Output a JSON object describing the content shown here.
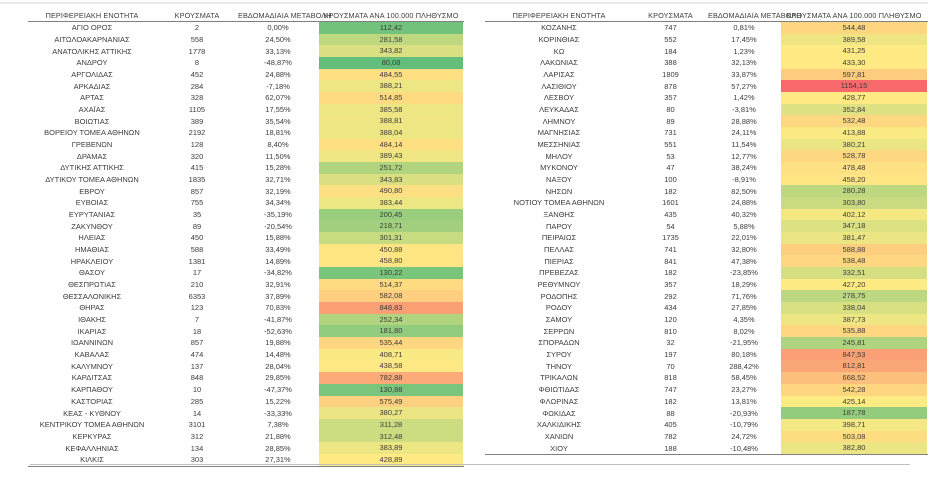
{
  "headers": {
    "region": "ΠΕΡΙΦΕΡΕΙΑΚΗ ΕΝΟΤΗΤΑ",
    "cases": "ΚΡΟΥΣΜΑΤΑ",
    "weekly_change": "ΕΒΔΟΜΑΔΙΑΙΑ ΜΕΤΑΒΟΛΗ",
    "per_100k": "ΚΡΟΥΣΜΑΤΑ ΑΝΑ 100.000 ΠΛΗΘΥΣΜΟ"
  },
  "color_scale": {
    "min_color": "#63BE7B",
    "mid_color": "#FFEB84",
    "max_color": "#F8696B",
    "min_value": 80.08,
    "mid_value": 425,
    "max_value": 1154.15
  },
  "tables": {
    "left": {
      "rows": [
        {
          "region": "ΑΓΙΟ ΟΡΟΣ",
          "cases": "2",
          "weekly_change": "0,00%",
          "per_100k": "112,42"
        },
        {
          "region": "ΑΙΤΩΛΟΑΚΑΡΝΑΝΙΑΣ",
          "cases": "558",
          "weekly_change": "24,50%",
          "per_100k": "281,58"
        },
        {
          "region": "ΑΝΑΤΟΛΙΚΗΣ ΑΤΤΙΚΗΣ",
          "cases": "1778",
          "weekly_change": "33,13%",
          "per_100k": "343,82"
        },
        {
          "region": "ΑΝΔΡΟΥ",
          "cases": "8",
          "weekly_change": "-48,87%",
          "per_100k": "80,08"
        },
        {
          "region": "ΑΡΓΟΛΙΔΑΣ",
          "cases": "452",
          "weekly_change": "24,88%",
          "per_100k": "484,55"
        },
        {
          "region": "ΑΡΚΑΔΙΑΣ",
          "cases": "284",
          "weekly_change": "-7,18%",
          "per_100k": "388,21"
        },
        {
          "region": "ΑΡΤΑΣ",
          "cases": "328",
          "weekly_change": "62,07%",
          "per_100k": "514,85"
        },
        {
          "region": "ΑΧΑΪΑΣ",
          "cases": "1105",
          "weekly_change": "17,55%",
          "per_100k": "385,58"
        },
        {
          "region": "ΒΟΙΩΤΙΑΣ",
          "cases": "389",
          "weekly_change": "35,54%",
          "per_100k": "388,81"
        },
        {
          "region": "ΒΟΡΕΙΟΥ ΤΟΜΕΑ ΑΘΗΝΩΝ",
          "cases": "2192",
          "weekly_change": "18,81%",
          "per_100k": "388,04"
        },
        {
          "region": "ΓΡΕΒΕΝΩΝ",
          "cases": "128",
          "weekly_change": "8,40%",
          "per_100k": "484,14"
        },
        {
          "region": "ΔΡΑΜΑΣ",
          "cases": "320",
          "weekly_change": "11,50%",
          "per_100k": "389,43"
        },
        {
          "region": "ΔΥΤΙΚΗΣ ΑΤΤΙΚΗΣ",
          "cases": "415",
          "weekly_change": "15,28%",
          "per_100k": "251,72"
        },
        {
          "region": "ΔΥΤΙΚΟΥ ΤΟΜΕΑ ΑΘΗΝΩΝ",
          "cases": "1835",
          "weekly_change": "32,71%",
          "per_100k": "343,83"
        },
        {
          "region": "ΕΒΡΟΥ",
          "cases": "857",
          "weekly_change": "32,19%",
          "per_100k": "490,80"
        },
        {
          "region": "ΕΥΒΟΙΑΣ",
          "cases": "755",
          "weekly_change": "34,34%",
          "per_100k": "383,44"
        },
        {
          "region": "ΕΥΡΥΤΑΝΙΑΣ",
          "cases": "35",
          "weekly_change": "-35,19%",
          "per_100k": "200,45"
        },
        {
          "region": "ΖΑΚΥΝΘΟΥ",
          "cases": "89",
          "weekly_change": "-20,54%",
          "per_100k": "218,71"
        },
        {
          "region": "ΗΛΕΙΑΣ",
          "cases": "450",
          "weekly_change": "15,88%",
          "per_100k": "301,31"
        },
        {
          "region": "ΗΜΑΘΙΑΣ",
          "cases": "588",
          "weekly_change": "33,49%",
          "per_100k": "450,88"
        },
        {
          "region": "ΗΡΑΚΛΕΙΟΥ",
          "cases": "1381",
          "weekly_change": "14,89%",
          "per_100k": "458,80"
        },
        {
          "region": "ΘΑΣΟΥ",
          "cases": "17",
          "weekly_change": "-34,82%",
          "per_100k": "130,22"
        },
        {
          "region": "ΘΕΣΠΡΩΤΙΑΣ",
          "cases": "210",
          "weekly_change": "32,91%",
          "per_100k": "514,37"
        },
        {
          "region": "ΘΕΣΣΑΛΟΝΙΚΗΣ",
          "cases": "6353",
          "weekly_change": "37,89%",
          "per_100k": "582,08"
        },
        {
          "region": "ΘΗΡΑΣ",
          "cases": "123",
          "weekly_change": "70,83%",
          "per_100k": "848,83"
        },
        {
          "region": "ΙΘΑΚΗΣ",
          "cases": "7",
          "weekly_change": "-41,87%",
          "per_100k": "252,34"
        },
        {
          "region": "ΙΚΑΡΙΑΣ",
          "cases": "18",
          "weekly_change": "-52,63%",
          "per_100k": "181,80"
        },
        {
          "region": "ΙΩΑΝΝΙΝΩΝ",
          "cases": "857",
          "weekly_change": "19,88%",
          "per_100k": "535,44"
        },
        {
          "region": "ΚΑΒΑΛΑΣ",
          "cases": "474",
          "weekly_change": "14,48%",
          "per_100k": "408,71"
        },
        {
          "region": "ΚΑΛΥΜΝΟΥ",
          "cases": "137",
          "weekly_change": "28,04%",
          "per_100k": "438,58"
        },
        {
          "region": "ΚΑΡΔΙΤΣΑΣ",
          "cases": "848",
          "weekly_change": "29,85%",
          "per_100k": "782,88"
        },
        {
          "region": "ΚΑΡΠΑΘΟΥ",
          "cases": "10",
          "weekly_change": "-47,37%",
          "per_100k": "130,88"
        },
        {
          "region": "ΚΑΣΤΟΡΙΑΣ",
          "cases": "285",
          "weekly_change": "15,22%",
          "per_100k": "575,49"
        },
        {
          "region": "ΚΕΑΣ - ΚΥΘΝΟΥ",
          "cases": "14",
          "weekly_change": "-33,33%",
          "per_100k": "380,27"
        },
        {
          "region": "ΚΕΝΤΡΙΚΟΥ ΤΟΜΕΑ ΑΘΗΝΩΝ",
          "cases": "3101",
          "weekly_change": "7,38%",
          "per_100k": "311,28"
        },
        {
          "region": "ΚΕΡΚΥΡΑΣ",
          "cases": "312",
          "weekly_change": "21,88%",
          "per_100k": "312,48"
        },
        {
          "region": "ΚΕΦΑΛΛΗΝΙΑΣ",
          "cases": "134",
          "weekly_change": "28,85%",
          "per_100k": "383,89"
        },
        {
          "region": "ΚΙΛΚΙΣ",
          "cases": "303",
          "weekly_change": "27,31%",
          "per_100k": "428,89"
        }
      ]
    },
    "right": {
      "rows": [
        {
          "region": "ΚΟΖΑΝΗΣ",
          "cases": "747",
          "weekly_change": "0,81%",
          "per_100k": "544,48"
        },
        {
          "region": "ΚΟΡΙΝΘΙΑΣ",
          "cases": "552",
          "weekly_change": "17,45%",
          "per_100k": "389,58"
        },
        {
          "region": "ΚΩ",
          "cases": "184",
          "weekly_change": "1,23%",
          "per_100k": "431,25"
        },
        {
          "region": "ΛΑΚΩΝΙΑΣ",
          "cases": "388",
          "weekly_change": "32,13%",
          "per_100k": "433,30"
        },
        {
          "region": "ΛΑΡΙΣΑΣ",
          "cases": "1809",
          "weekly_change": "33,87%",
          "per_100k": "597,81"
        },
        {
          "region": "ΛΑΣΙΘΙΟΥ",
          "cases": "878",
          "weekly_change": "57,27%",
          "per_100k": "1154,15"
        },
        {
          "region": "ΛΕΣΒΟΥ",
          "cases": "357",
          "weekly_change": "1,42%",
          "per_100k": "428,77"
        },
        {
          "region": "ΛΕΥΚΑΔΑΣ",
          "cases": "80",
          "weekly_change": "-3,81%",
          "per_100k": "352,84"
        },
        {
          "region": "ΛΗΜΝΟΥ",
          "cases": "89",
          "weekly_change": "28,88%",
          "per_100k": "532,48"
        },
        {
          "region": "ΜΑΓΝΗΣΙΑΣ",
          "cases": "731",
          "weekly_change": "24,11%",
          "per_100k": "413,88"
        },
        {
          "region": "ΜΕΣΣΗΝΙΑΣ",
          "cases": "551",
          "weekly_change": "11,54%",
          "per_100k": "380,21"
        },
        {
          "region": "ΜΗΛΟΥ",
          "cases": "53",
          "weekly_change": "12,77%",
          "per_100k": "528,78"
        },
        {
          "region": "ΜΥΚΟΝΟΥ",
          "cases": "47",
          "weekly_change": "38,24%",
          "per_100k": "478,48"
        },
        {
          "region": "ΝΑΞΟΥ",
          "cases": "100",
          "weekly_change": "-8,91%",
          "per_100k": "458,20"
        },
        {
          "region": "ΝΗΣΩΝ",
          "cases": "182",
          "weekly_change": "82,50%",
          "per_100k": "280,28"
        },
        {
          "region": "ΝΟΤΙΟΥ ΤΟΜΕΑ ΑΘΗΝΩΝ",
          "cases": "1601",
          "weekly_change": "24,88%",
          "per_100k": "303,80"
        },
        {
          "region": "ΞΑΝΘΗΣ",
          "cases": "435",
          "weekly_change": "40,32%",
          "per_100k": "402,12"
        },
        {
          "region": "ΠΑΡΟΥ",
          "cases": "54",
          "weekly_change": "5,88%",
          "per_100k": "347,18"
        },
        {
          "region": "ΠΕΙΡΑΙΩΣ",
          "cases": "1735",
          "weekly_change": "22,01%",
          "per_100k": "381,47"
        },
        {
          "region": "ΠΕΛΛΑΣ",
          "cases": "741",
          "weekly_change": "32,80%",
          "per_100k": "588,88"
        },
        {
          "region": "ΠΙΕΡΙΑΣ",
          "cases": "841",
          "weekly_change": "47,38%",
          "per_100k": "538,48"
        },
        {
          "region": "ΠΡΕΒΕΖΑΣ",
          "cases": "182",
          "weekly_change": "-23,85%",
          "per_100k": "332,51"
        },
        {
          "region": "ΡΕΘΥΜΝΟΥ",
          "cases": "357",
          "weekly_change": "18,29%",
          "per_100k": "427,20"
        },
        {
          "region": "ΡΟΔΟΠΗΣ",
          "cases": "292",
          "weekly_change": "71,76%",
          "per_100k": "278,75"
        },
        {
          "region": "ΡΟΔΟΥ",
          "cases": "434",
          "weekly_change": "27,85%",
          "per_100k": "338,04"
        },
        {
          "region": "ΣΑΜΟΥ",
          "cases": "120",
          "weekly_change": "4,35%",
          "per_100k": "387,73"
        },
        {
          "region": "ΣΕΡΡΩΝ",
          "cases": "810",
          "weekly_change": "8,02%",
          "per_100k": "535,88"
        },
        {
          "region": "ΣΠΟΡΑΔΩΝ",
          "cases": "32",
          "weekly_change": "-21,95%",
          "per_100k": "245,81"
        },
        {
          "region": "ΣΥΡΟΥ",
          "cases": "197",
          "weekly_change": "80,18%",
          "per_100k": "847,53"
        },
        {
          "region": "ΤΗΝΟΥ",
          "cases": "70",
          "weekly_change": "288,42%",
          "per_100k": "812,81"
        },
        {
          "region": "ΤΡΙΚΑΛΩΝ",
          "cases": "818",
          "weekly_change": "58,45%",
          "per_100k": "668,52"
        },
        {
          "region": "ΦΘΙΩΤΙΔΑΣ",
          "cases": "747",
          "weekly_change": "23,27%",
          "per_100k": "542,28"
        },
        {
          "region": "ΦΛΩΡΙΝΑΣ",
          "cases": "182",
          "weekly_change": "13,81%",
          "per_100k": "425,14"
        },
        {
          "region": "ΦΩΚΙΔΑΣ",
          "cases": "88",
          "weekly_change": "-20,93%",
          "per_100k": "187,78"
        },
        {
          "region": "ΧΑΛΚΙΔΙΚΗΣ",
          "cases": "405",
          "weekly_change": "-10,79%",
          "per_100k": "398,71"
        },
        {
          "region": "ΧΑΝΙΩΝ",
          "cases": "782",
          "weekly_change": "24,72%",
          "per_100k": "503,08"
        },
        {
          "region": "ΧΙΟΥ",
          "cases": "188",
          "weekly_change": "-10,48%",
          "per_100k": "382,80"
        }
      ]
    }
  }
}
